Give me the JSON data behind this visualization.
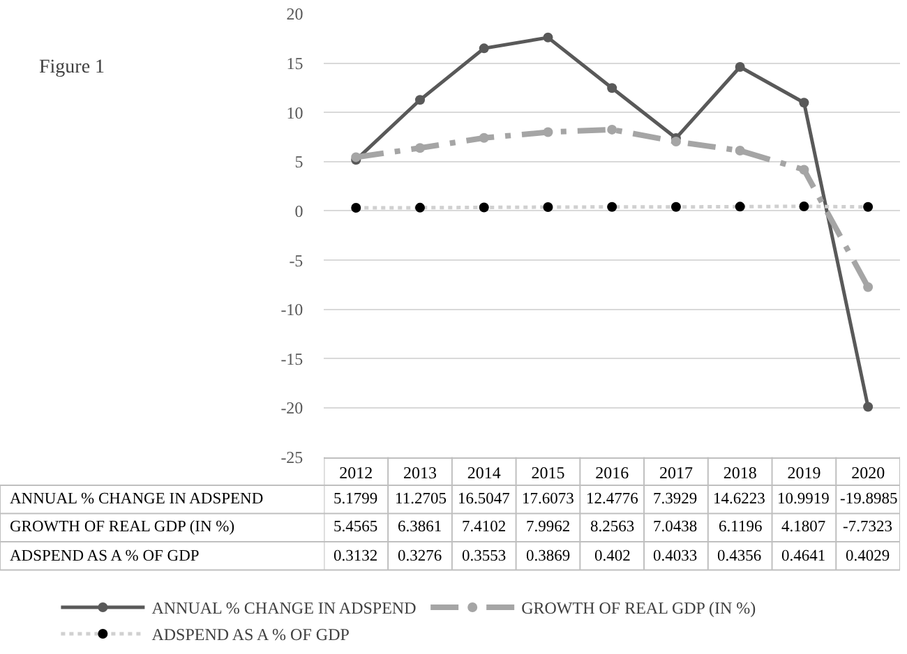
{
  "chart_data": {
    "type": "line",
    "annotations": [
      "Figure 1"
    ],
    "categories": [
      "2012",
      "2013",
      "2014",
      "2015",
      "2016",
      "2017",
      "2018",
      "2019",
      "2020"
    ],
    "series": [
      {
        "name": "ANNUAL % CHANGE IN ADSPEND",
        "color": "#595959",
        "marker": "circle",
        "line_style": "solid",
        "values": [
          5.1799,
          11.2705,
          16.5047,
          17.6073,
          12.4776,
          7.3929,
          14.6223,
          10.9919,
          -19.8985
        ]
      },
      {
        "name": "GROWTH OF REAL GDP (IN %)",
        "color": "#a5a5a5",
        "marker": "circle",
        "line_style": "dashdot",
        "values": [
          5.4565,
          6.3861,
          7.4102,
          7.9962,
          8.2563,
          7.0438,
          6.1196,
          4.1807,
          -7.7323
        ]
      },
      {
        "name": "ADSPEND AS A % OF GDP",
        "color": "#d0d0d0",
        "marker": "circle",
        "line_style": "dotted",
        "values": [
          0.3132,
          0.3276,
          0.3553,
          0.3869,
          0.402,
          0.4033,
          0.4356,
          0.4641,
          0.4029
        ]
      }
    ],
    "ylim": [
      -25,
      20
    ],
    "yticks": [
      -25,
      -20,
      -15,
      -10,
      -5,
      0,
      5,
      10,
      15,
      20
    ],
    "grid": "y",
    "legend": "bottom",
    "data_labels": true
  }
}
